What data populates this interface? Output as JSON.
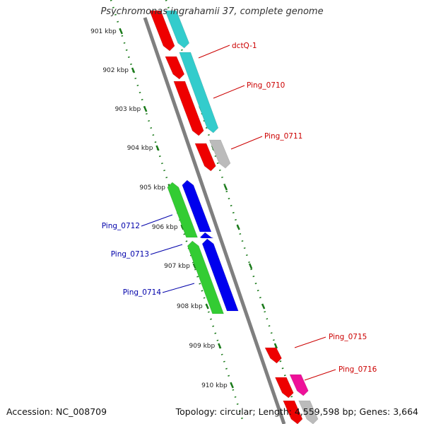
{
  "title": "Psychromonas ingrahamii 37, complete genome",
  "footer": {
    "accession": "Accession: NC_008709",
    "summary": "Topology: circular; Length: 4,559,598 bp; Genes: 3,664"
  },
  "colors": {
    "forward_label": "#cc0000",
    "reverse_label": "#0000aa",
    "backbone": "#7f7f7f",
    "scale_ticks": "#1a7a1a"
  },
  "kbp_labels": [
    "901 kbp",
    "902 kbp",
    "903 kbp",
    "904 kbp",
    "905 kbp",
    "906 kbp",
    "907 kbp",
    "908 kbp",
    "909 kbp",
    "910 kbp"
  ],
  "gene_labels": [
    {
      "text": "dctQ-1",
      "color": "#cc0000"
    },
    {
      "text": "Ping_0710",
      "color": "#cc0000"
    },
    {
      "text": "Ping_0711",
      "color": "#cc0000"
    },
    {
      "text": "Ping_0712",
      "color": "#0000aa"
    },
    {
      "text": "Ping_0713",
      "color": "#0000aa"
    },
    {
      "text": "Ping_0714",
      "color": "#0000aa"
    },
    {
      "text": "Ping_0715",
      "color": "#cc0000"
    },
    {
      "text": "Ping_0716",
      "color": "#cc0000"
    }
  ],
  "feature_colors": {
    "red": "#ee0000",
    "cyan": "#33cccc",
    "gray": "#bbbbbb",
    "green": "#33cc33",
    "blue": "#0000ee",
    "magenta": "#ee1199"
  }
}
